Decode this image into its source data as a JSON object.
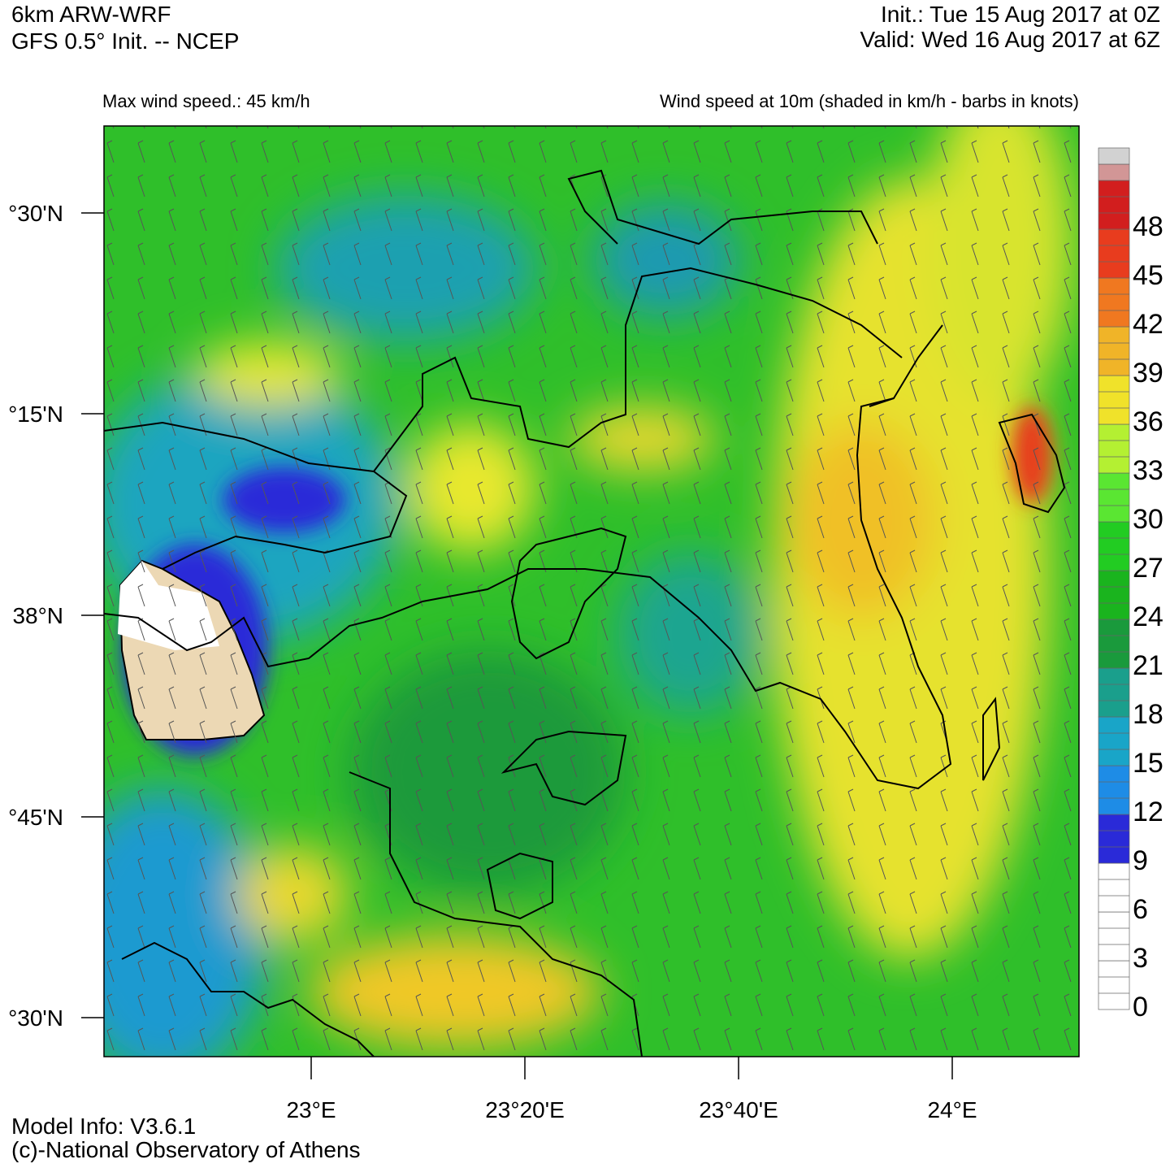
{
  "header": {
    "left": [
      "6km ARW-WRF",
      "GFS 0.5° Init. -- NCEP"
    ],
    "right": [
      "Init.:  Tue 15 Aug 2017 at 0Z",
      "Valid: Wed 16 Aug 2017 at 6Z"
    ]
  },
  "subtitle_left": "Max wind speed.: 45 km/h",
  "subtitle_right": "Wind speed at 10m (shaded in km/h - barbs in knots)",
  "axes": {
    "lat_labels": [
      "°30'N",
      "°15'N",
      "38°N",
      "°45'N",
      "°30'N"
    ],
    "lon_labels": [
      "23°E",
      "23°20'E",
      "23°40'E",
      "24°E"
    ]
  },
  "colorbar": {
    "labels": [
      0,
      3,
      6,
      9,
      12,
      15,
      18,
      21,
      24,
      27,
      30,
      33,
      36,
      39,
      42,
      45,
      48
    ],
    "colors": [
      "#ffffff",
      "#ffffff",
      "#ffffff",
      "#2a2ad8",
      "#1e8ce6",
      "#19a5c8",
      "#1a9f8c",
      "#1a9a3c",
      "#1ab41e",
      "#22cc22",
      "#5ae632",
      "#b4f032",
      "#f0e22a",
      "#f0b428",
      "#f07820",
      "#e83c1e",
      "#d21e1e",
      "#d29696",
      "#d2d2d2"
    ]
  },
  "footer": [
    "Model Info: V3.6.1",
    "(c)-National Observatory of Athens"
  ]
}
